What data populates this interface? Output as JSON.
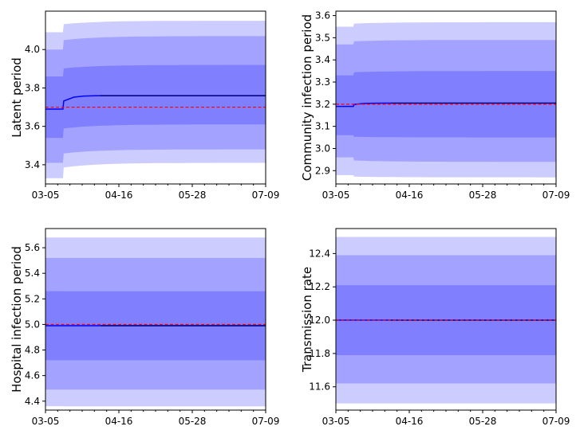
{
  "chart_data": [
    {
      "type": "area",
      "ylabel": "Latent period",
      "ylim": [
        3.3,
        4.2
      ],
      "yticks": [
        3.4,
        3.6,
        3.8,
        4.0
      ],
      "xticks": [
        "03-05",
        "04-16",
        "05-28",
        "07-09"
      ],
      "x_range_days": [
        0,
        126
      ],
      "event_day": 10,
      "true_value": 3.7,
      "median": {
        "before": 3.69,
        "after": 3.76
      },
      "bands": [
        {
          "level": "outer",
          "lower_before": 3.33,
          "upper_before": 4.09,
          "lower_after": 3.41,
          "upper_after": 4.15
        },
        {
          "level": "middle",
          "lower_before": 3.41,
          "upper_before": 4.0,
          "lower_after": 3.48,
          "upper_after": 4.07
        },
        {
          "level": "inner",
          "lower_before": 3.54,
          "upper_before": 3.86,
          "lower_after": 3.61,
          "upper_after": 3.92
        }
      ]
    },
    {
      "type": "area",
      "ylabel": "Community infection period",
      "ylim": [
        2.84,
        3.62
      ],
      "yticks": [
        2.9,
        3.0,
        3.1,
        3.2,
        3.3,
        3.4,
        3.5,
        3.6
      ],
      "xticks": [
        "03-05",
        "04-16",
        "05-28",
        "07-09"
      ],
      "x_range_days": [
        0,
        126
      ],
      "event_day": 10,
      "true_value": 3.2,
      "median": {
        "before": 3.19,
        "after": 3.205
      },
      "bands": [
        {
          "level": "outer",
          "lower_before": 2.88,
          "upper_before": 3.55,
          "lower_after": 2.87,
          "upper_after": 3.57
        },
        {
          "level": "middle",
          "lower_before": 2.96,
          "upper_before": 3.47,
          "lower_after": 2.94,
          "upper_after": 3.49
        },
        {
          "level": "inner",
          "lower_before": 3.06,
          "upper_before": 3.33,
          "lower_after": 3.05,
          "upper_after": 3.35
        }
      ]
    },
    {
      "type": "area",
      "ylabel": "Hospital infection period",
      "ylim": [
        4.33,
        5.75
      ],
      "yticks": [
        4.4,
        4.6,
        4.8,
        5.0,
        5.2,
        5.4,
        5.6
      ],
      "xticks": [
        "03-05",
        "04-16",
        "05-28",
        "07-09"
      ],
      "x_range_days": [
        0,
        126
      ],
      "event_day": 10,
      "true_value": 5.0,
      "median": {
        "before": 4.99,
        "after": 4.99
      },
      "bands": [
        {
          "level": "outer",
          "lower_before": 4.36,
          "upper_before": 5.68,
          "lower_after": 4.36,
          "upper_after": 5.68
        },
        {
          "level": "middle",
          "lower_before": 4.49,
          "upper_before": 5.52,
          "lower_after": 4.49,
          "upper_after": 5.52
        },
        {
          "level": "inner",
          "lower_before": 4.72,
          "upper_before": 5.26,
          "lower_after": 4.72,
          "upper_after": 5.26
        }
      ]
    },
    {
      "type": "area",
      "ylabel": "Transmission rate",
      "ylim": [
        11.46,
        12.55
      ],
      "yticks": [
        11.6,
        11.8,
        12.0,
        12.2,
        12.4
      ],
      "xticks": [
        "03-05",
        "04-16",
        "05-28",
        "07-09"
      ],
      "x_range_days": [
        0,
        126
      ],
      "event_day": 10,
      "true_value": 12.0,
      "median": {
        "before": 12.0,
        "after": 12.0
      },
      "bands": [
        {
          "level": "outer",
          "lower_before": 11.5,
          "upper_before": 12.5,
          "lower_after": 11.5,
          "upper_after": 12.5
        },
        {
          "level": "middle",
          "lower_before": 11.62,
          "upper_before": 12.39,
          "lower_after": 11.62,
          "upper_after": 12.39
        },
        {
          "level": "inner",
          "lower_before": 11.79,
          "upper_before": 12.21,
          "lower_after": 11.79,
          "upper_after": 12.21
        }
      ]
    }
  ],
  "colors": {
    "outer_band": "#ccccff",
    "middle_band": "#a3a3ff",
    "inner_band": "#8080ff",
    "median_line": "#0000ff",
    "median_line_after": "#000066",
    "true_value_line": "#ff0000",
    "axis": "#000000"
  }
}
